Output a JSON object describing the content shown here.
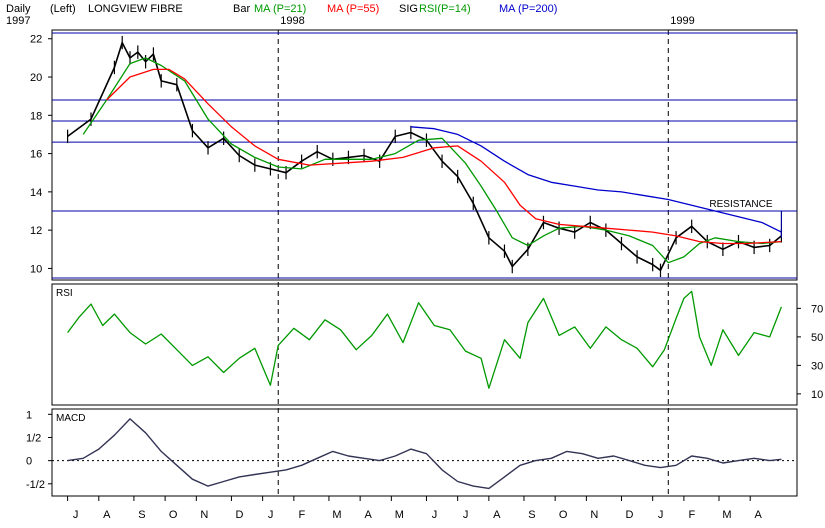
{
  "header": {
    "period": "Daily",
    "scale_side": "(Left)",
    "title": "LONGVIEW FIBRE",
    "start_year": "1997",
    "legend": [
      {
        "label": "Bar",
        "color": "#000000"
      },
      {
        "label": "MA (P=21)",
        "color": "#009900"
      },
      {
        "label": "MA (P=55)",
        "color": "#ff0000"
      },
      {
        "label": "SIG",
        "color": "#000000"
      },
      {
        "label": "RSI(P=14)",
        "color": "#009900"
      },
      {
        "label": "MA (P=200)",
        "color": "#0000cc"
      }
    ]
  },
  "colors": {
    "price": "#000000",
    "ma21": "#009900",
    "ma55": "#ff0000",
    "ma200": "#0000cc",
    "rsi": "#009900",
    "macd": "#333355",
    "hline": "#0000aa",
    "annotation_line": "#000099",
    "frame": "#000000"
  },
  "chart_data": [
    {
      "type": "line",
      "panel": "price",
      "ylim": [
        9.5,
        22.3
      ],
      "yticks": [
        10,
        12,
        14,
        16,
        18,
        20,
        22
      ],
      "horizontal_lines": [
        22.3,
        18.8,
        17.7,
        16.6,
        13.0,
        9.5
      ],
      "annotation": {
        "text": "RESISTANCE",
        "x": 1999.29,
        "y": 13.0
      },
      "year_markers": [
        {
          "label": "1998",
          "x": 1998.0
        },
        {
          "label": "1999",
          "x": 1999.0
        }
      ],
      "series": [
        {
          "key": "bar",
          "x": [
            1997.46,
            1997.52,
            1997.58,
            1997.6,
            1997.62,
            1997.64,
            1997.66,
            1997.68,
            1997.7,
            1997.74,
            1997.78,
            1997.82,
            1997.86,
            1997.9,
            1997.94,
            1997.98,
            1998.02,
            1998.06,
            1998.1,
            1998.14,
            1998.18,
            1998.22,
            1998.26,
            1998.3,
            1998.34,
            1998.38,
            1998.42,
            1998.46,
            1998.5,
            1998.54,
            1998.58,
            1998.6,
            1998.64,
            1998.68,
            1998.72,
            1998.76,
            1998.8,
            1998.84,
            1998.88,
            1998.92,
            1998.96,
            1998.98,
            1999.02,
            1999.06,
            1999.1,
            1999.14,
            1999.18,
            1999.22,
            1999.26,
            1999.29
          ],
          "y": [
            16.9,
            17.8,
            20.5,
            21.8,
            21.0,
            21.3,
            20.8,
            21.2,
            19.8,
            19.6,
            17.2,
            16.3,
            16.8,
            15.9,
            15.4,
            15.2,
            15.0,
            15.6,
            16.1,
            15.7,
            15.8,
            15.9,
            15.6,
            16.9,
            17.1,
            16.7,
            15.6,
            14.8,
            13.4,
            11.6,
            10.9,
            10.1,
            11.0,
            12.4,
            12.1,
            11.9,
            12.4,
            12.0,
            11.3,
            10.6,
            10.2,
            9.9,
            11.6,
            12.2,
            11.4,
            11.0,
            11.4,
            11.1,
            11.2,
            11.7
          ]
        },
        {
          "key": "ma21",
          "x": [
            1997.5,
            1997.56,
            1997.62,
            1997.66,
            1997.7,
            1997.76,
            1997.82,
            1997.88,
            1997.94,
            1998.0,
            1998.06,
            1998.12,
            1998.18,
            1998.24,
            1998.3,
            1998.36,
            1998.42,
            1998.48,
            1998.52,
            1998.56,
            1998.6,
            1998.64,
            1998.68,
            1998.72,
            1998.78,
            1998.84,
            1998.9,
            1998.96,
            1999.0,
            1999.04,
            1999.08,
            1999.12,
            1999.18,
            1999.24,
            1999.29
          ],
          "y": [
            17.0,
            18.8,
            20.7,
            21.0,
            20.6,
            19.8,
            17.8,
            16.5,
            15.8,
            15.3,
            15.2,
            15.7,
            15.7,
            15.7,
            16.0,
            16.7,
            16.8,
            15.5,
            14.3,
            13.0,
            11.6,
            11.2,
            11.7,
            12.1,
            12.2,
            12.0,
            11.7,
            11.2,
            10.3,
            10.6,
            11.3,
            11.6,
            11.4,
            11.3,
            11.4
          ]
        },
        {
          "key": "ma55",
          "x": [
            1997.56,
            1997.62,
            1997.68,
            1997.72,
            1997.76,
            1997.82,
            1997.88,
            1997.94,
            1998.0,
            1998.08,
            1998.16,
            1998.24,
            1998.32,
            1998.4,
            1998.46,
            1998.52,
            1998.58,
            1998.62,
            1998.66,
            1998.72,
            1998.78,
            1998.84,
            1998.9,
            1998.96,
            1999.02,
            1999.08,
            1999.14,
            1999.2,
            1999.29
          ],
          "y": [
            18.8,
            20.0,
            20.4,
            20.4,
            19.9,
            18.6,
            17.4,
            16.4,
            15.7,
            15.4,
            15.5,
            15.6,
            15.8,
            16.3,
            16.4,
            15.6,
            14.5,
            13.3,
            12.6,
            12.3,
            12.2,
            12.1,
            12.0,
            11.9,
            11.7,
            11.4,
            11.3,
            11.3,
            11.4
          ]
        },
        {
          "key": "ma200",
          "x": [
            1998.34,
            1998.4,
            1998.46,
            1998.52,
            1998.58,
            1998.64,
            1998.7,
            1998.76,
            1998.82,
            1998.88,
            1998.94,
            1999.0,
            1999.06,
            1999.12,
            1999.18,
            1999.24,
            1999.29
          ],
          "y": [
            17.4,
            17.3,
            17.0,
            16.4,
            15.6,
            14.9,
            14.5,
            14.3,
            14.1,
            14.0,
            13.8,
            13.6,
            13.3,
            13.0,
            12.7,
            12.4,
            11.9
          ]
        }
      ]
    },
    {
      "type": "line",
      "panel": "rsi",
      "title": "RSI",
      "ylim": [
        5,
        85
      ],
      "yticks": [
        10,
        30,
        50,
        70
      ],
      "x": [
        1997.46,
        1997.49,
        1997.52,
        1997.55,
        1997.58,
        1997.62,
        1997.66,
        1997.7,
        1997.74,
        1997.78,
        1997.82,
        1997.86,
        1997.9,
        1997.94,
        1997.98,
        1998.0,
        1998.04,
        1998.08,
        1998.12,
        1998.16,
        1998.2,
        1998.24,
        1998.28,
        1998.32,
        1998.36,
        1998.4,
        1998.44,
        1998.48,
        1998.52,
        1998.54,
        1998.58,
        1998.62,
        1998.64,
        1998.68,
        1998.72,
        1998.76,
        1998.8,
        1998.84,
        1998.88,
        1998.92,
        1998.96,
        1998.99,
        1999.02,
        1999.04,
        1999.06,
        1999.08,
        1999.11,
        1999.14,
        1999.18,
        1999.22,
        1999.26,
        1999.29
      ],
      "y": [
        53,
        64,
        73,
        58,
        66,
        53,
        45,
        52,
        41,
        30,
        36,
        25,
        35,
        42,
        16,
        44,
        56,
        48,
        62,
        55,
        41,
        51,
        66,
        46,
        74,
        58,
        55,
        40,
        35,
        14,
        48,
        35,
        60,
        77,
        51,
        57,
        42,
        57,
        48,
        42,
        29,
        41,
        63,
        77,
        82,
        50,
        30,
        55,
        37,
        53,
        50,
        71
      ]
    },
    {
      "type": "line",
      "panel": "macd",
      "title": "MACD",
      "ylim": [
        -0.72,
        1.05
      ],
      "yticks": [
        1,
        0.5,
        0,
        -0.5
      ],
      "ytick_labels": [
        "1",
        "1/2",
        "0",
        "-1/2"
      ],
      "zero_line": 0,
      "x": [
        1997.46,
        1997.5,
        1997.54,
        1997.58,
        1997.62,
        1997.66,
        1997.7,
        1997.74,
        1997.78,
        1997.82,
        1997.86,
        1997.9,
        1997.94,
        1997.98,
        1998.02,
        1998.06,
        1998.1,
        1998.14,
        1998.18,
        1998.22,
        1998.26,
        1998.3,
        1998.34,
        1998.38,
        1998.42,
        1998.46,
        1998.5,
        1998.54,
        1998.58,
        1998.62,
        1998.66,
        1998.7,
        1998.74,
        1998.78,
        1998.82,
        1998.86,
        1998.9,
        1998.94,
        1998.98,
        1999.02,
        1999.06,
        1999.1,
        1999.14,
        1999.18,
        1999.22,
        1999.26,
        1999.29
      ],
      "y": [
        0.0,
        0.05,
        0.25,
        0.55,
        0.9,
        0.6,
        0.2,
        -0.1,
        -0.4,
        -0.55,
        -0.45,
        -0.35,
        -0.3,
        -0.25,
        -0.2,
        -0.1,
        0.05,
        0.2,
        0.1,
        0.05,
        0.0,
        0.1,
        0.25,
        0.15,
        -0.2,
        -0.45,
        -0.55,
        -0.6,
        -0.35,
        -0.1,
        0.0,
        0.05,
        0.2,
        0.15,
        0.05,
        0.1,
        0.0,
        -0.1,
        -0.15,
        -0.1,
        0.1,
        0.05,
        -0.05,
        0.0,
        0.05,
        0.0,
        0.03
      ]
    }
  ],
  "x_axis": {
    "ticks": [
      {
        "label": "J",
        "x": 1997.46
      },
      {
        "label": "A",
        "x": 1997.54
      },
      {
        "label": "S",
        "x": 1997.63
      },
      {
        "label": "O",
        "x": 1997.71
      },
      {
        "label": "N",
        "x": 1997.79
      },
      {
        "label": "D",
        "x": 1997.88
      },
      {
        "label": "J",
        "x": 1997.96
      },
      {
        "label": "F",
        "x": 1998.04
      },
      {
        "label": "M",
        "x": 1998.13
      },
      {
        "label": "A",
        "x": 1998.21
      },
      {
        "label": "M",
        "x": 1998.29
      },
      {
        "label": "J",
        "x": 1998.38
      },
      {
        "label": "J",
        "x": 1998.46
      },
      {
        "label": "A",
        "x": 1998.54
      },
      {
        "label": "S",
        "x": 1998.63
      },
      {
        "label": "O",
        "x": 1998.71
      },
      {
        "label": "N",
        "x": 1998.79
      },
      {
        "label": "D",
        "x": 1998.88
      },
      {
        "label": "J",
        "x": 1998.96
      },
      {
        "label": "F",
        "x": 1999.04
      },
      {
        "label": "M",
        "x": 1999.13
      },
      {
        "label": "A",
        "x": 1999.21
      }
    ]
  }
}
